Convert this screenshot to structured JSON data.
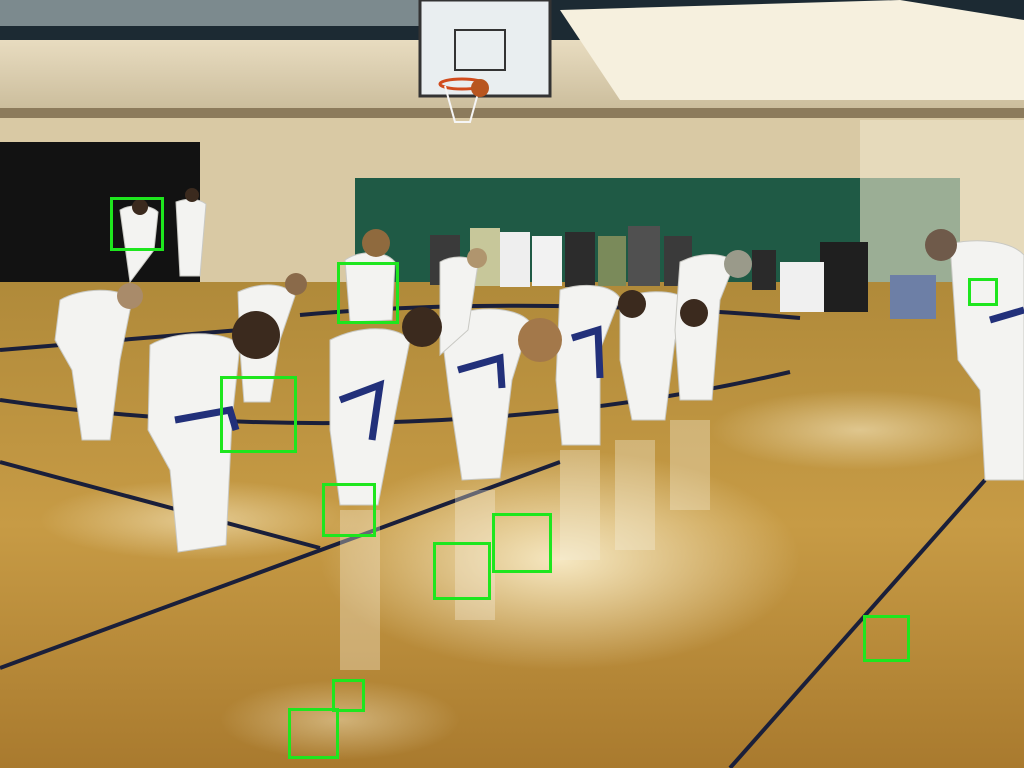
{
  "image": {
    "description_name": "karate-class-bowing-in-gym",
    "highlight_color": "#1ee61e"
  },
  "annotations": {
    "count": 11
  }
}
